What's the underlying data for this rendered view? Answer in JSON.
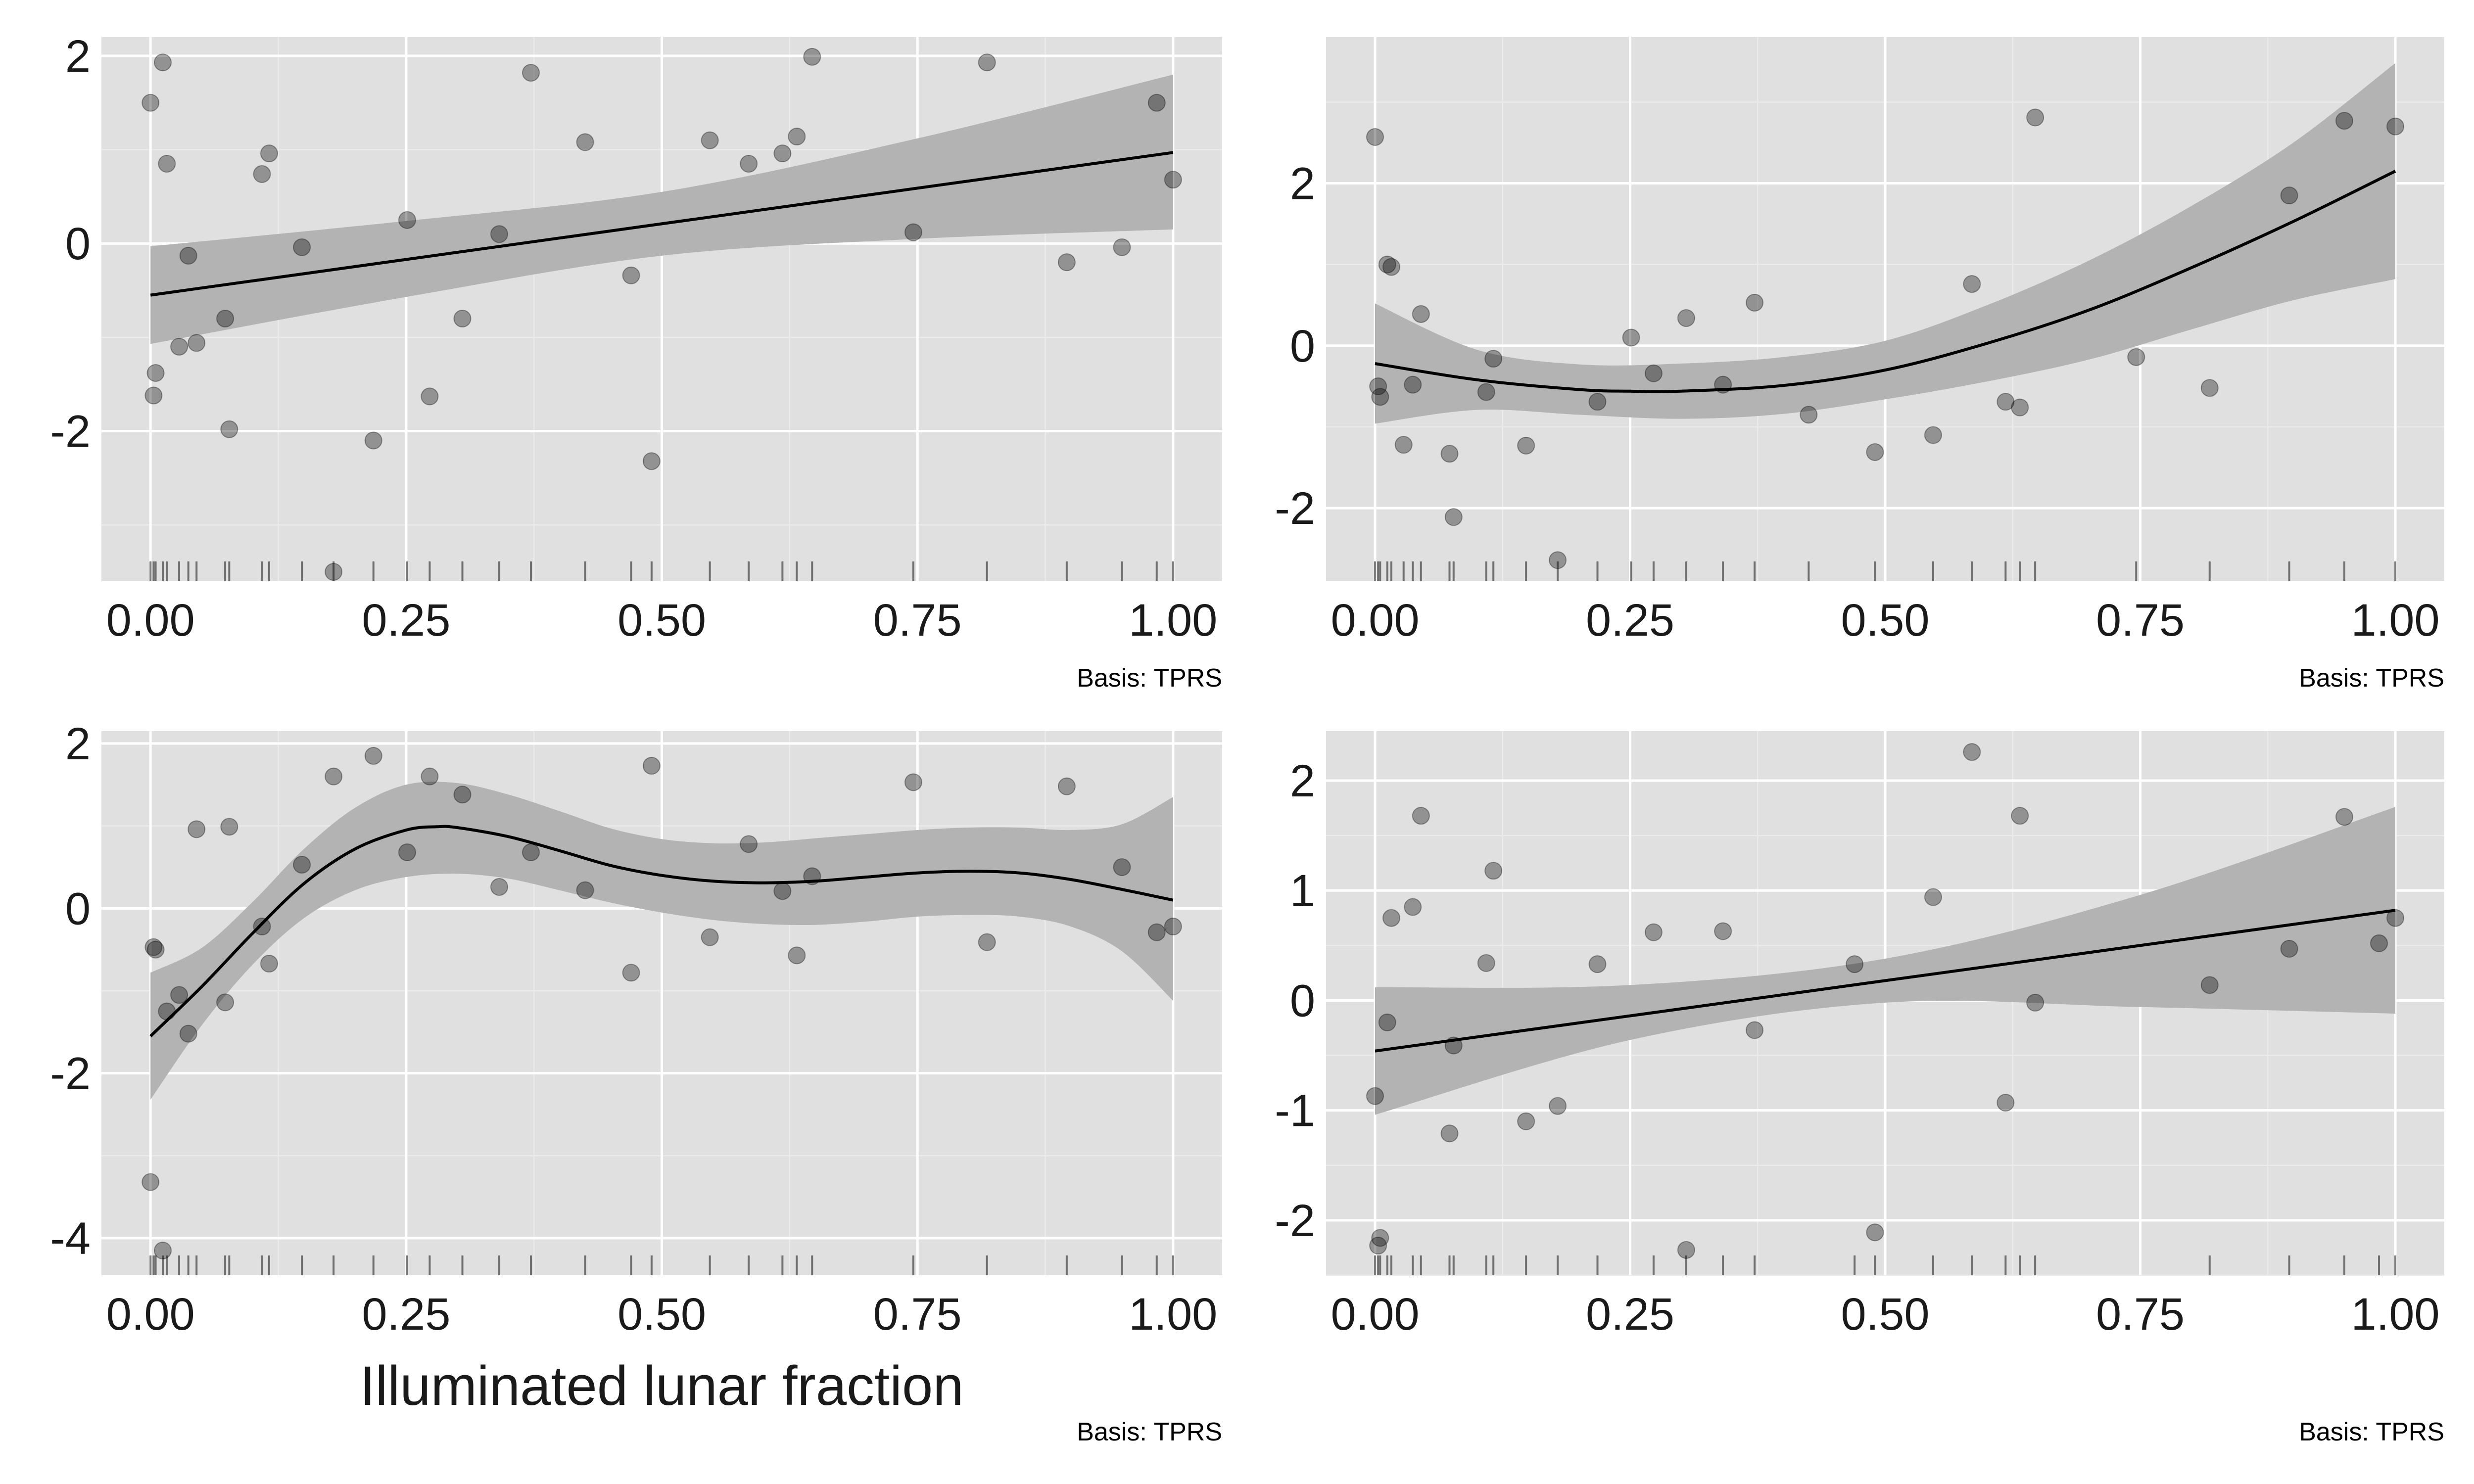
{
  "chart_data": [
    {
      "type": "scatter",
      "xlabel": "",
      "caption": "Basis: TPRS",
      "xlim": [
        0,
        1
      ],
      "ylim": [
        -3.6,
        2.2
      ],
      "x_ticks": [
        "0.00",
        "0.25",
        "0.50",
        "0.75",
        "1.00"
      ],
      "y_ticks": [
        {
          "v": -2,
          "label": "-2"
        },
        {
          "v": 0,
          "label": "0"
        },
        {
          "v": 2,
          "label": "2"
        }
      ],
      "points": [
        [
          0.0,
          1.5
        ],
        [
          0.003,
          -1.62
        ],
        [
          0.005,
          -1.38
        ],
        [
          0.012,
          1.93
        ],
        [
          0.016,
          0.85
        ],
        [
          0.028,
          -1.1
        ],
        [
          0.037,
          -0.13
        ],
        [
          0.045,
          -1.06
        ],
        [
          0.073,
          -0.8
        ],
        [
          0.077,
          -1.98
        ],
        [
          0.109,
          0.74
        ],
        [
          0.116,
          0.96
        ],
        [
          0.148,
          -0.04
        ],
        [
          0.179,
          -3.5
        ],
        [
          0.218,
          -2.1
        ],
        [
          0.251,
          0.25
        ],
        [
          0.273,
          -1.63
        ],
        [
          0.305,
          -0.8
        ],
        [
          0.341,
          0.1
        ],
        [
          0.372,
          1.82
        ],
        [
          0.425,
          1.08
        ],
        [
          0.47,
          -0.34
        ],
        [
          0.49,
          -2.32
        ],
        [
          0.547,
          1.1
        ],
        [
          0.585,
          0.85
        ],
        [
          0.618,
          0.96
        ],
        [
          0.632,
          1.14
        ],
        [
          0.647,
          1.99
        ],
        [
          0.746,
          0.12
        ],
        [
          0.818,
          1.93
        ],
        [
          0.896,
          -0.2
        ],
        [
          0.95,
          -0.04
        ],
        [
          0.984,
          1.5
        ],
        [
          1.0,
          0.68
        ]
      ],
      "fit": [
        [
          0.0,
          -0.55
        ],
        [
          0.5,
          0.21
        ],
        [
          1.0,
          0.97
        ]
      ],
      "band_upper": [
        [
          0.0,
          -0.03
        ],
        [
          0.25,
          0.24
        ],
        [
          0.5,
          0.55
        ],
        [
          0.75,
          1.12
        ],
        [
          1.0,
          1.8
        ]
      ],
      "band_lower": [
        [
          0.0,
          -1.07
        ],
        [
          0.25,
          -0.57
        ],
        [
          0.5,
          -0.13
        ],
        [
          0.75,
          0.05
        ],
        [
          1.0,
          0.15
        ]
      ],
      "rug": [
        0.0,
        0.003,
        0.005,
        0.012,
        0.016,
        0.028,
        0.037,
        0.045,
        0.073,
        0.077,
        0.109,
        0.116,
        0.148,
        0.179,
        0.218,
        0.251,
        0.273,
        0.305,
        0.341,
        0.372,
        0.425,
        0.47,
        0.49,
        0.547,
        0.585,
        0.618,
        0.632,
        0.647,
        0.746,
        0.818,
        0.896,
        0.95,
        0.984,
        1.0
      ]
    },
    {
      "type": "scatter",
      "xlabel": "",
      "caption": "Basis: TPRS",
      "xlim": [
        0,
        1
      ],
      "ylim": [
        -2.9,
        3.8
      ],
      "x_ticks": [
        "0.00",
        "0.25",
        "0.50",
        "0.75",
        "1.00"
      ],
      "y_ticks": [
        {
          "v": -2,
          "label": "-2"
        },
        {
          "v": 0,
          "label": "0"
        },
        {
          "v": 2,
          "label": "2"
        }
      ],
      "points": [
        [
          0.0,
          2.57
        ],
        [
          0.003,
          -0.5
        ],
        [
          0.005,
          -0.63
        ],
        [
          0.012,
          1.0
        ],
        [
          0.016,
          0.97
        ],
        [
          0.028,
          -1.22
        ],
        [
          0.037,
          -0.48
        ],
        [
          0.045,
          0.39
        ],
        [
          0.073,
          -1.33
        ],
        [
          0.077,
          -2.11
        ],
        [
          0.109,
          -0.57
        ],
        [
          0.116,
          -0.16
        ],
        [
          0.148,
          -1.23
        ],
        [
          0.179,
          -2.64
        ],
        [
          0.218,
          -0.69
        ],
        [
          0.251,
          0.1
        ],
        [
          0.273,
          -0.34
        ],
        [
          0.305,
          0.34
        ],
        [
          0.341,
          -0.48
        ],
        [
          0.372,
          0.53
        ],
        [
          0.425,
          -0.85
        ],
        [
          0.49,
          -1.31
        ],
        [
          0.547,
          -1.1
        ],
        [
          0.585,
          0.76
        ],
        [
          0.618,
          -0.69
        ],
        [
          0.632,
          -0.76
        ],
        [
          0.647,
          2.81
        ],
        [
          0.746,
          -0.14
        ],
        [
          0.818,
          -0.52
        ],
        [
          0.896,
          1.85
        ],
        [
          0.95,
          2.77
        ],
        [
          1.0,
          2.7
        ]
      ],
      "fit": [
        [
          0.0,
          -0.22
        ],
        [
          0.1,
          -0.42
        ],
        [
          0.2,
          -0.54
        ],
        [
          0.25,
          -0.56
        ],
        [
          0.3,
          -0.56
        ],
        [
          0.4,
          -0.49
        ],
        [
          0.5,
          -0.3
        ],
        [
          0.6,
          0.03
        ],
        [
          0.7,
          0.44
        ],
        [
          0.8,
          0.96
        ],
        [
          0.9,
          1.53
        ],
        [
          1.0,
          2.15
        ]
      ],
      "band_upper": [
        [
          0.0,
          0.52
        ],
        [
          0.1,
          -0.05
        ],
        [
          0.2,
          -0.23
        ],
        [
          0.3,
          -0.22
        ],
        [
          0.4,
          -0.14
        ],
        [
          0.5,
          0.06
        ],
        [
          0.6,
          0.5
        ],
        [
          0.7,
          1.05
        ],
        [
          0.8,
          1.72
        ],
        [
          0.9,
          2.5
        ],
        [
          1.0,
          3.48
        ]
      ],
      "band_lower": [
        [
          0.0,
          -0.96
        ],
        [
          0.1,
          -0.79
        ],
        [
          0.2,
          -0.85
        ],
        [
          0.3,
          -0.9
        ],
        [
          0.4,
          -0.84
        ],
        [
          0.5,
          -0.66
        ],
        [
          0.6,
          -0.44
        ],
        [
          0.7,
          -0.17
        ],
        [
          0.8,
          0.2
        ],
        [
          0.9,
          0.56
        ],
        [
          1.0,
          0.82
        ]
      ],
      "rug": [
        0.0,
        0.003,
        0.005,
        0.012,
        0.016,
        0.028,
        0.037,
        0.045,
        0.073,
        0.077,
        0.109,
        0.116,
        0.148,
        0.179,
        0.218,
        0.251,
        0.273,
        0.305,
        0.341,
        0.372,
        0.425,
        0.49,
        0.547,
        0.585,
        0.618,
        0.632,
        0.647,
        0.746,
        0.818,
        0.896,
        0.95,
        1.0
      ]
    },
    {
      "type": "scatter",
      "xlabel": "Illuminated lunar fraction",
      "caption": "Basis: TPRS",
      "xlim": [
        0,
        1
      ],
      "ylim": [
        -4.45,
        2.15
      ],
      "x_ticks": [
        "0.00",
        "0.25",
        "0.50",
        "0.75",
        "1.00"
      ],
      "y_ticks": [
        {
          "v": -4,
          "label": "-4"
        },
        {
          "v": -2,
          "label": "-2"
        },
        {
          "v": 0,
          "label": "0"
        },
        {
          "v": 2,
          "label": "2"
        }
      ],
      "points": [
        [
          0.0,
          -3.32
        ],
        [
          0.003,
          -0.47
        ],
        [
          0.005,
          -0.5
        ],
        [
          0.012,
          -4.15
        ],
        [
          0.016,
          -1.25
        ],
        [
          0.028,
          -1.05
        ],
        [
          0.037,
          -1.52
        ],
        [
          0.045,
          0.96
        ],
        [
          0.073,
          -1.14
        ],
        [
          0.077,
          0.99
        ],
        [
          0.109,
          -0.22
        ],
        [
          0.116,
          -0.67
        ],
        [
          0.148,
          0.53
        ],
        [
          0.179,
          1.6
        ],
        [
          0.218,
          1.85
        ],
        [
          0.251,
          0.68
        ],
        [
          0.273,
          1.6
        ],
        [
          0.305,
          1.38
        ],
        [
          0.341,
          0.26
        ],
        [
          0.372,
          0.68
        ],
        [
          0.425,
          0.22
        ],
        [
          0.47,
          -0.78
        ],
        [
          0.49,
          1.73
        ],
        [
          0.547,
          -0.35
        ],
        [
          0.585,
          0.78
        ],
        [
          0.618,
          0.21
        ],
        [
          0.632,
          -0.57
        ],
        [
          0.647,
          0.39
        ],
        [
          0.746,
          1.53
        ],
        [
          0.818,
          -0.41
        ],
        [
          0.896,
          1.48
        ],
        [
          0.95,
          0.5
        ],
        [
          0.984,
          -0.29
        ],
        [
          1.0,
          -0.22
        ]
      ],
      "fit": [
        [
          0.0,
          -1.55
        ],
        [
          0.05,
          -0.95
        ],
        [
          0.1,
          -0.3
        ],
        [
          0.15,
          0.3
        ],
        [
          0.2,
          0.72
        ],
        [
          0.25,
          0.95
        ],
        [
          0.28,
          0.99
        ],
        [
          0.3,
          0.98
        ],
        [
          0.35,
          0.87
        ],
        [
          0.4,
          0.7
        ],
        [
          0.45,
          0.52
        ],
        [
          0.5,
          0.4
        ],
        [
          0.55,
          0.33
        ],
        [
          0.6,
          0.31
        ],
        [
          0.65,
          0.33
        ],
        [
          0.7,
          0.38
        ],
        [
          0.75,
          0.43
        ],
        [
          0.8,
          0.45
        ],
        [
          0.85,
          0.43
        ],
        [
          0.9,
          0.35
        ],
        [
          0.95,
          0.23
        ],
        [
          1.0,
          0.1
        ]
      ],
      "band_upper": [
        [
          0.0,
          -0.78
        ],
        [
          0.05,
          -0.48
        ],
        [
          0.1,
          0.08
        ],
        [
          0.15,
          0.72
        ],
        [
          0.2,
          1.22
        ],
        [
          0.25,
          1.5
        ],
        [
          0.3,
          1.52
        ],
        [
          0.35,
          1.38
        ],
        [
          0.4,
          1.18
        ],
        [
          0.45,
          0.97
        ],
        [
          0.5,
          0.84
        ],
        [
          0.55,
          0.79
        ],
        [
          0.6,
          0.8
        ],
        [
          0.65,
          0.85
        ],
        [
          0.7,
          0.9
        ],
        [
          0.75,
          0.95
        ],
        [
          0.8,
          0.98
        ],
        [
          0.85,
          0.98
        ],
        [
          0.9,
          0.95
        ],
        [
          0.95,
          1.02
        ],
        [
          1.0,
          1.35
        ]
      ],
      "band_lower": [
        [
          0.0,
          -2.32
        ],
        [
          0.05,
          -1.42
        ],
        [
          0.1,
          -0.68
        ],
        [
          0.15,
          -0.12
        ],
        [
          0.2,
          0.22
        ],
        [
          0.25,
          0.38
        ],
        [
          0.3,
          0.42
        ],
        [
          0.35,
          0.36
        ],
        [
          0.4,
          0.22
        ],
        [
          0.45,
          0.07
        ],
        [
          0.5,
          -0.05
        ],
        [
          0.55,
          -0.14
        ],
        [
          0.6,
          -0.19
        ],
        [
          0.65,
          -0.2
        ],
        [
          0.7,
          -0.16
        ],
        [
          0.75,
          -0.1
        ],
        [
          0.8,
          -0.08
        ],
        [
          0.85,
          -0.1
        ],
        [
          0.9,
          -0.22
        ],
        [
          0.95,
          -0.52
        ],
        [
          1.0,
          -1.12
        ]
      ],
      "rug": [
        0.0,
        0.003,
        0.005,
        0.012,
        0.016,
        0.028,
        0.037,
        0.045,
        0.073,
        0.077,
        0.109,
        0.116,
        0.148,
        0.179,
        0.218,
        0.251,
        0.273,
        0.305,
        0.341,
        0.372,
        0.425,
        0.47,
        0.49,
        0.547,
        0.585,
        0.618,
        0.632,
        0.647,
        0.746,
        0.818,
        0.896,
        0.95,
        0.984,
        1.0
      ]
    },
    {
      "type": "scatter",
      "xlabel": "",
      "caption": "Basis: TPRS",
      "xlim": [
        0,
        1
      ],
      "ylim": [
        -2.5,
        2.45
      ],
      "x_ticks": [
        "0.00",
        "0.25",
        "0.50",
        "0.75",
        "1.00"
      ],
      "y_ticks": [
        {
          "v": -2,
          "label": "-2"
        },
        {
          "v": -1,
          "label": "-1"
        },
        {
          "v": 0,
          "label": "0"
        },
        {
          "v": 1,
          "label": "1"
        },
        {
          "v": 2,
          "label": "2"
        }
      ],
      "points": [
        [
          0.0,
          -0.87
        ],
        [
          0.003,
          -2.23
        ],
        [
          0.005,
          -2.16
        ],
        [
          0.012,
          -0.2
        ],
        [
          0.016,
          0.75
        ],
        [
          0.037,
          0.85
        ],
        [
          0.045,
          1.68
        ],
        [
          0.073,
          -1.21
        ],
        [
          0.077,
          -0.41
        ],
        [
          0.109,
          0.34
        ],
        [
          0.116,
          1.18
        ],
        [
          0.148,
          -1.1
        ],
        [
          0.179,
          -0.96
        ],
        [
          0.218,
          0.33
        ],
        [
          0.273,
          0.62
        ],
        [
          0.305,
          -2.27
        ],
        [
          0.341,
          0.63
        ],
        [
          0.372,
          -0.27
        ],
        [
          0.47,
          0.33
        ],
        [
          0.49,
          -2.11
        ],
        [
          0.547,
          0.94
        ],
        [
          0.585,
          2.26
        ],
        [
          0.618,
          -0.93
        ],
        [
          0.632,
          1.68
        ],
        [
          0.647,
          -0.02
        ],
        [
          0.818,
          0.14
        ],
        [
          0.896,
          0.47
        ],
        [
          0.95,
          1.67
        ],
        [
          0.984,
          0.52
        ],
        [
          1.0,
          0.75
        ]
      ],
      "fit": [
        [
          0.0,
          -0.46
        ],
        [
          0.5,
          0.18
        ],
        [
          1.0,
          0.82
        ]
      ],
      "band_upper": [
        [
          0.0,
          0.12
        ],
        [
          0.25,
          0.14
        ],
        [
          0.5,
          0.38
        ],
        [
          0.75,
          0.96
        ],
        [
          1.0,
          1.76
        ]
      ],
      "band_lower": [
        [
          0.0,
          -1.04
        ],
        [
          0.25,
          -0.36
        ],
        [
          0.5,
          -0.02
        ],
        [
          0.75,
          -0.06
        ],
        [
          1.0,
          -0.12
        ]
      ],
      "rug": [
        0.0,
        0.003,
        0.005,
        0.012,
        0.016,
        0.037,
        0.045,
        0.073,
        0.077,
        0.109,
        0.116,
        0.148,
        0.179,
        0.218,
        0.273,
        0.305,
        0.341,
        0.372,
        0.47,
        0.49,
        0.547,
        0.585,
        0.618,
        0.632,
        0.647,
        0.818,
        0.896,
        0.95,
        0.984,
        1.0
      ]
    }
  ]
}
